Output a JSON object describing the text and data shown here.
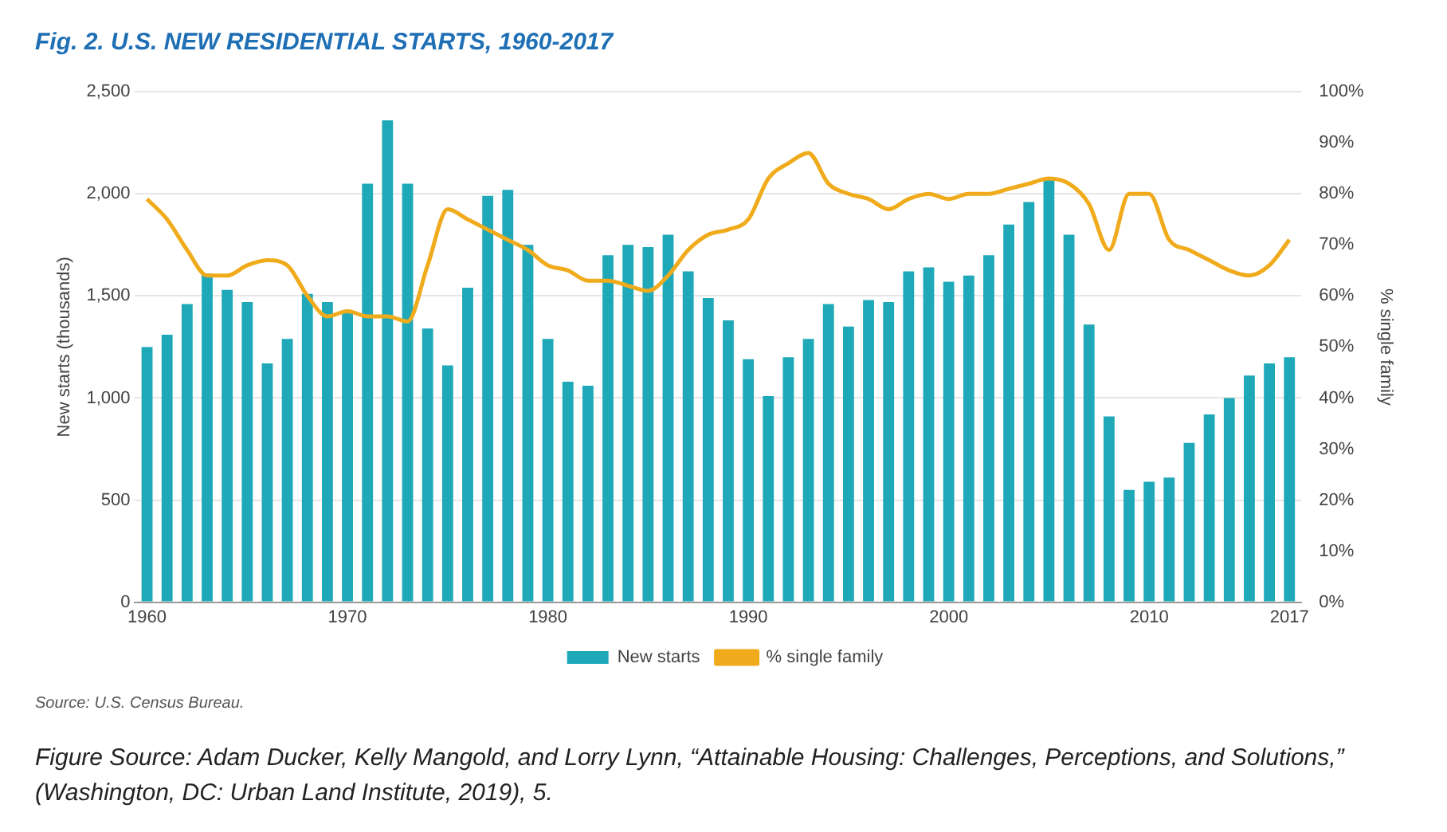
{
  "chart_data": {
    "type": "bar",
    "title": "Fig. 2. U.S. NEW RESIDENTIAL STARTS, 1960-2017",
    "ylabel": "New starts (thousands)",
    "y2label": "% single family",
    "x": [
      1960,
      1961,
      1962,
      1963,
      1964,
      1965,
      1966,
      1967,
      1968,
      1969,
      1970,
      1971,
      1972,
      1973,
      1974,
      1975,
      1976,
      1977,
      1978,
      1979,
      1980,
      1981,
      1982,
      1983,
      1984,
      1985,
      1986,
      1987,
      1988,
      1989,
      1990,
      1991,
      1992,
      1993,
      1994,
      1995,
      1996,
      1997,
      1998,
      1999,
      2000,
      2001,
      2002,
      2003,
      2004,
      2005,
      2006,
      2007,
      2008,
      2009,
      2010,
      2011,
      2012,
      2013,
      2014,
      2015,
      2016,
      2017
    ],
    "series": [
      {
        "name": "New starts",
        "color": "#1fa9b8",
        "values": [
          1250,
          1310,
          1460,
          1610,
          1530,
          1470,
          1170,
          1290,
          1510,
          1470,
          1430,
          2050,
          2360,
          2050,
          1340,
          1160,
          1540,
          1990,
          2020,
          1750,
          1290,
          1080,
          1060,
          1700,
          1750,
          1740,
          1800,
          1620,
          1490,
          1380,
          1190,
          1010,
          1200,
          1290,
          1460,
          1350,
          1480,
          1470,
          1620,
          1640,
          1570,
          1600,
          1700,
          1850,
          1960,
          2070,
          1800,
          1360,
          910,
          550,
          590,
          610,
          780,
          920,
          1000,
          1110,
          1170,
          1200
        ]
      },
      {
        "name": "% single family",
        "type": "line",
        "axis": "y2",
        "color": "#f0ab1c",
        "values": [
          79,
          75,
          69,
          64,
          64,
          66,
          67,
          66,
          60,
          56,
          57,
          56,
          56,
          55,
          66,
          77,
          75,
          73,
          71,
          69,
          66,
          65,
          63,
          63,
          62,
          61,
          64,
          69,
          72,
          73,
          75,
          83,
          86,
          88,
          82,
          80,
          79,
          77,
          79,
          80,
          79,
          80,
          80,
          81,
          82,
          83,
          82,
          78,
          69,
          80,
          80,
          71,
          69,
          67,
          65,
          64,
          66,
          71
        ]
      }
    ],
    "xlim": [
      1959.4,
      2017.6
    ],
    "xticks": [
      1960,
      1970,
      1980,
      1990,
      2000,
      2010,
      2017
    ],
    "ylim": [
      0,
      2500
    ],
    "yticks": [
      0,
      500,
      {
        "value": 1000,
        "label": "1,000"
      },
      {
        "value": 1500,
        "label": "1,500"
      },
      {
        "value": 2000,
        "label": "2,000"
      },
      {
        "value": 2500,
        "label": "2,500"
      }
    ],
    "y2lim": [
      0,
      100
    ],
    "y2ticks": [
      {
        "value": 0,
        "label": "0%"
      },
      {
        "value": 10,
        "label": "10%"
      },
      {
        "value": 20,
        "label": "20%"
      },
      {
        "value": 30,
        "label": "30%"
      },
      {
        "value": 40,
        "label": "40%"
      },
      {
        "value": 50,
        "label": "50%"
      },
      {
        "value": 60,
        "label": "60%"
      },
      {
        "value": 70,
        "label": "70%"
      },
      {
        "value": 80,
        "label": "80%"
      },
      {
        "value": 90,
        "label": "90%"
      },
      {
        "value": 100,
        "label": "100%"
      }
    ],
    "grid": "y",
    "legend": "bottom",
    "marker": "none",
    "annotations": [
      "Source: U.S. Census Bureau.",
      "Figure Source: Adam Ducker, Kelly Mangold, and Lorry Lynn, “Attainable Housing: Challenges, Perceptions, and Solutions,”  (Washington, DC: Urban Land Institute, 2019), 5."
    ]
  }
}
